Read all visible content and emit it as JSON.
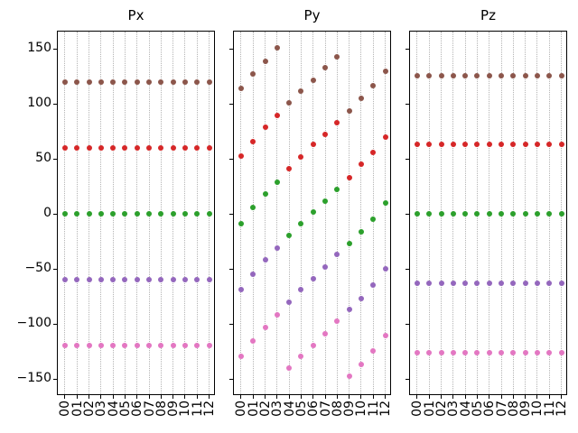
{
  "figure": {
    "background": "#ffffff",
    "axis_color": "#000000",
    "grid_color": "#b4b4b4",
    "grid_style": "dotted"
  },
  "chart_data": [
    {
      "type": "scatter",
      "title": "Px",
      "x_categories": [
        "00",
        "01",
        "02",
        "03",
        "04",
        "05",
        "06",
        "07",
        "08",
        "09",
        "10",
        "11",
        "12"
      ],
      "ylim": [
        -166,
        166
      ],
      "yticks": [
        150,
        100,
        50,
        0,
        -50,
        -100,
        -150
      ],
      "ytick_labels": [
        "150",
        "100",
        "50",
        "0",
        "−50",
        "−100",
        "−150"
      ],
      "show_ytick_labels": true,
      "grid": "x-dotted",
      "legend": "none",
      "series": [
        {
          "name": "brown",
          "color": "#8C564B",
          "values": [
            120,
            120,
            120,
            120,
            120,
            120,
            120,
            120,
            120,
            120,
            120,
            120,
            120
          ]
        },
        {
          "name": "red",
          "color": "#D62728",
          "values": [
            60,
            60,
            60,
            60,
            60,
            60,
            60,
            60,
            60,
            60,
            60,
            60,
            60
          ]
        },
        {
          "name": "green",
          "color": "#2CA02C",
          "values": [
            0,
            0,
            0,
            0,
            0,
            0,
            0,
            0,
            0,
            0,
            0,
            0,
            0
          ]
        },
        {
          "name": "purple",
          "color": "#9467BD",
          "values": [
            -60,
            -60,
            -60,
            -60,
            -60,
            -60,
            -60,
            -60,
            -60,
            -60,
            -60,
            -60,
            -60
          ]
        },
        {
          "name": "pink",
          "color": "#E377C2",
          "values": [
            -120,
            -120,
            -120,
            -120,
            -120,
            -120,
            -120,
            -120,
            -120,
            -120,
            -120,
            -120,
            -120
          ]
        }
      ]
    },
    {
      "type": "scatter",
      "title": "Py",
      "x_categories": [
        "00",
        "01",
        "02",
        "03",
        "04",
        "05",
        "06",
        "07",
        "08",
        "09",
        "10",
        "11",
        "12"
      ],
      "ylim": [
        -166,
        166
      ],
      "yticks": [
        150,
        100,
        50,
        0,
        -50,
        -100,
        -150
      ],
      "ytick_labels": [
        "150",
        "100",
        "50",
        "0",
        "−50",
        "−100",
        "−150"
      ],
      "show_ytick_labels": false,
      "grid": "x-dotted",
      "legend": "none",
      "series": [
        {
          "name": "brown",
          "color": "#8C564B",
          "values": [
            114,
            127,
            139,
            151,
            101,
            112,
            122,
            133,
            143,
            94,
            105,
            117,
            130
          ]
        },
        {
          "name": "red",
          "color": "#D62728",
          "values": [
            53,
            66,
            79,
            90,
            41,
            52,
            63,
            72,
            83,
            33,
            45,
            56,
            70
          ]
        },
        {
          "name": "green",
          "color": "#2CA02C",
          "values": [
            -9,
            6,
            18,
            29,
            -20,
            -9,
            2,
            12,
            22,
            -27,
            -16,
            -5,
            10
          ]
        },
        {
          "name": "purple",
          "color": "#9467BD",
          "values": [
            -69,
            -55,
            -42,
            -31,
            -80,
            -69,
            -59,
            -48,
            -37,
            -87,
            -77,
            -65,
            -50
          ]
        },
        {
          "name": "pink",
          "color": "#E377C2",
          "values": [
            -130,
            -116,
            -103,
            -92,
            -140,
            -130,
            -120,
            -109,
            -98,
            -148,
            -137,
            -125,
            -111
          ]
        }
      ]
    },
    {
      "type": "scatter",
      "title": "Pz",
      "x_categories": [
        "00",
        "01",
        "02",
        "03",
        "04",
        "05",
        "06",
        "07",
        "08",
        "09",
        "10",
        "11",
        "12"
      ],
      "ylim": [
        -166,
        166
      ],
      "yticks": [
        150,
        100,
        50,
        0,
        -50,
        -100,
        -150
      ],
      "ytick_labels": [
        "150",
        "100",
        "50",
        "0",
        "−50",
        "−100",
        "−150"
      ],
      "show_ytick_labels": false,
      "grid": "x-dotted",
      "legend": "none",
      "series": [
        {
          "name": "brown",
          "color": "#8C564B",
          "values": [
            126,
            126,
            126,
            126,
            126,
            126,
            126,
            126,
            126,
            126,
            126,
            126,
            126
          ]
        },
        {
          "name": "red",
          "color": "#D62728",
          "values": [
            63,
            63,
            63,
            63,
            63,
            63,
            63,
            63,
            63,
            63,
            63,
            63,
            63
          ]
        },
        {
          "name": "green",
          "color": "#2CA02C",
          "values": [
            0,
            0,
            0,
            0,
            0,
            0,
            0,
            0,
            0,
            0,
            0,
            0,
            0
          ]
        },
        {
          "name": "purple",
          "color": "#9467BD",
          "values": [
            -63,
            -63,
            -63,
            -63,
            -63,
            -63,
            -63,
            -63,
            -63,
            -63,
            -63,
            -63,
            -63
          ]
        },
        {
          "name": "pink",
          "color": "#E377C2",
          "values": [
            -126,
            -126,
            -126,
            -126,
            -126,
            -126,
            -126,
            -126,
            -126,
            -126,
            -126,
            -126,
            -126
          ]
        }
      ]
    }
  ]
}
